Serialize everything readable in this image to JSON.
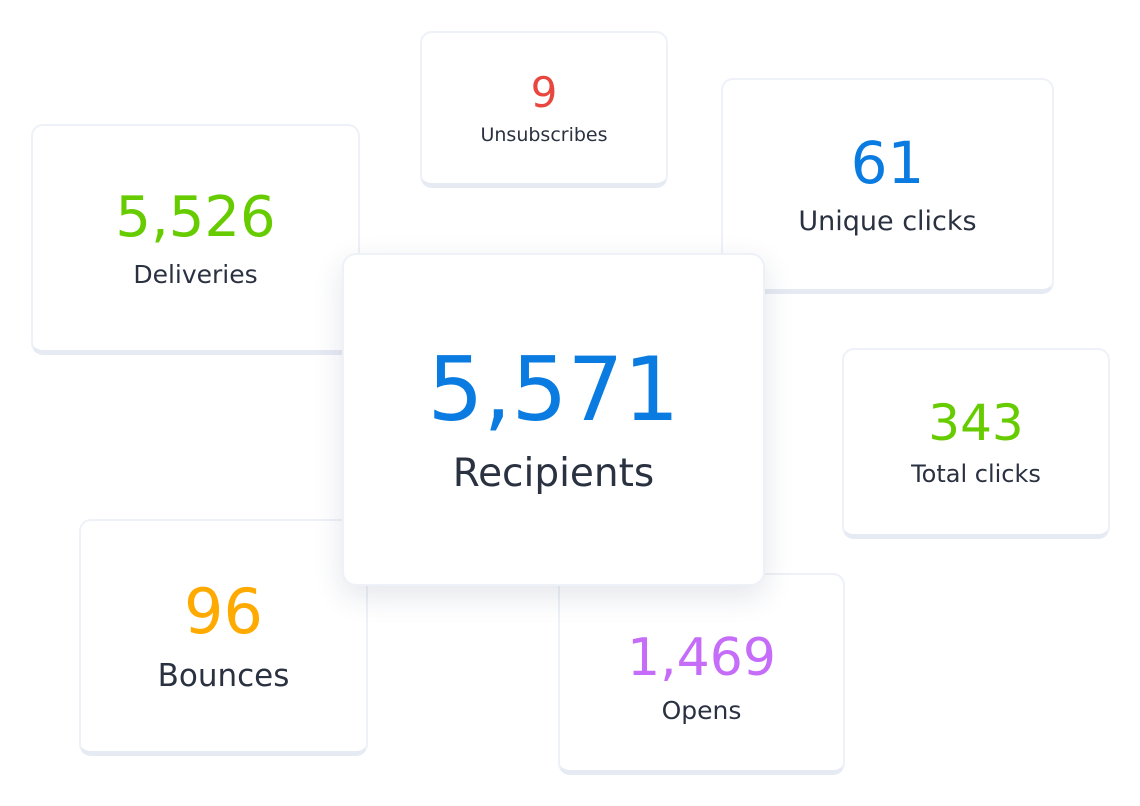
{
  "stats": {
    "unsubscribes": {
      "value": "9",
      "label": "Unsubscribes",
      "color": "#e8473f"
    },
    "deliveries": {
      "value": "5,526",
      "label": "Deliveries",
      "color": "#66cc00"
    },
    "unique_clicks": {
      "value": "61",
      "label": "Unique clicks",
      "color": "#0a7be0"
    },
    "recipients": {
      "value": "5,571",
      "label": "Recipients",
      "color": "#0a7be0"
    },
    "total_clicks": {
      "value": "343",
      "label": "Total clicks",
      "color": "#66cc00"
    },
    "bounces": {
      "value": "96",
      "label": "Bounces",
      "color": "#ffaa00"
    },
    "opens": {
      "value": "1,469",
      "label": "Opens",
      "color": "#c56cf8"
    }
  }
}
